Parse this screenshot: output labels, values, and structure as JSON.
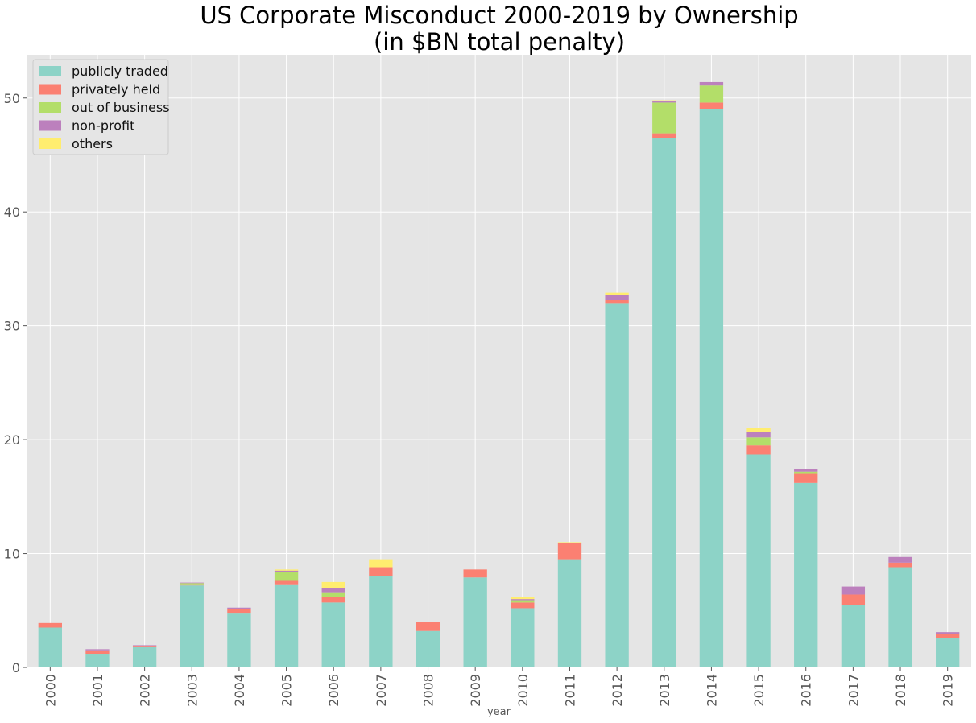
{
  "chart_data": {
    "type": "bar",
    "stacked": true,
    "title": "US Corporate Misconduct 2000-2019 by Ownership",
    "subtitle": "(in $BN total penalty)",
    "xlabel": "year",
    "ylabel": "",
    "ylim": [
      0,
      53.8
    ],
    "yticks": [
      0,
      10,
      20,
      30,
      40,
      50
    ],
    "grid": true,
    "legend_position": "top-left",
    "categories": [
      "2000",
      "2001",
      "2002",
      "2003",
      "2004",
      "2005",
      "2006",
      "2007",
      "2008",
      "2009",
      "2010",
      "2011",
      "2012",
      "2013",
      "2014",
      "2015",
      "2016",
      "2017",
      "2018",
      "2019"
    ],
    "series": [
      {
        "name": "publicly traded",
        "color": "#8dd3c7",
        "values": [
          3.5,
          1.2,
          1.8,
          7.2,
          4.8,
          7.3,
          5.7,
          8.0,
          3.2,
          7.9,
          5.2,
          9.5,
          32.0,
          46.5,
          49.0,
          18.7,
          16.2,
          5.5,
          8.8,
          2.6
        ]
      },
      {
        "name": "privately held",
        "color": "#fb8072",
        "values": [
          0.4,
          0.3,
          0.1,
          0.1,
          0.3,
          0.3,
          0.5,
          0.8,
          0.8,
          0.7,
          0.5,
          1.4,
          0.3,
          0.4,
          0.6,
          0.8,
          0.8,
          0.9,
          0.4,
          0.3
        ]
      },
      {
        "name": "out of business",
        "color": "#b3de69",
        "values": [
          0.0,
          0.0,
          0.0,
          0.1,
          0.05,
          0.8,
          0.4,
          0.0,
          0.0,
          0.0,
          0.2,
          0.0,
          0.0,
          2.7,
          1.5,
          0.7,
          0.2,
          0.0,
          0.0,
          0.0
        ]
      },
      {
        "name": "non-profit",
        "color": "#bc80bd",
        "values": [
          0.0,
          0.1,
          0.05,
          0.05,
          0.1,
          0.1,
          0.4,
          0.0,
          0.0,
          0.0,
          0.1,
          0.0,
          0.4,
          0.1,
          0.3,
          0.5,
          0.2,
          0.7,
          0.5,
          0.2
        ]
      },
      {
        "name": "others",
        "color": "#ffed6f",
        "values": [
          0.0,
          0.0,
          0.0,
          0.0,
          0.0,
          0.1,
          0.5,
          0.7,
          0.0,
          0.0,
          0.2,
          0.1,
          0.2,
          0.1,
          0.0,
          0.3,
          0.0,
          0.0,
          0.0,
          0.0
        ]
      }
    ]
  },
  "colors": {
    "plot_background": "#e5e5e5",
    "grid": "#ffffff",
    "tick_text": "#555555"
  }
}
